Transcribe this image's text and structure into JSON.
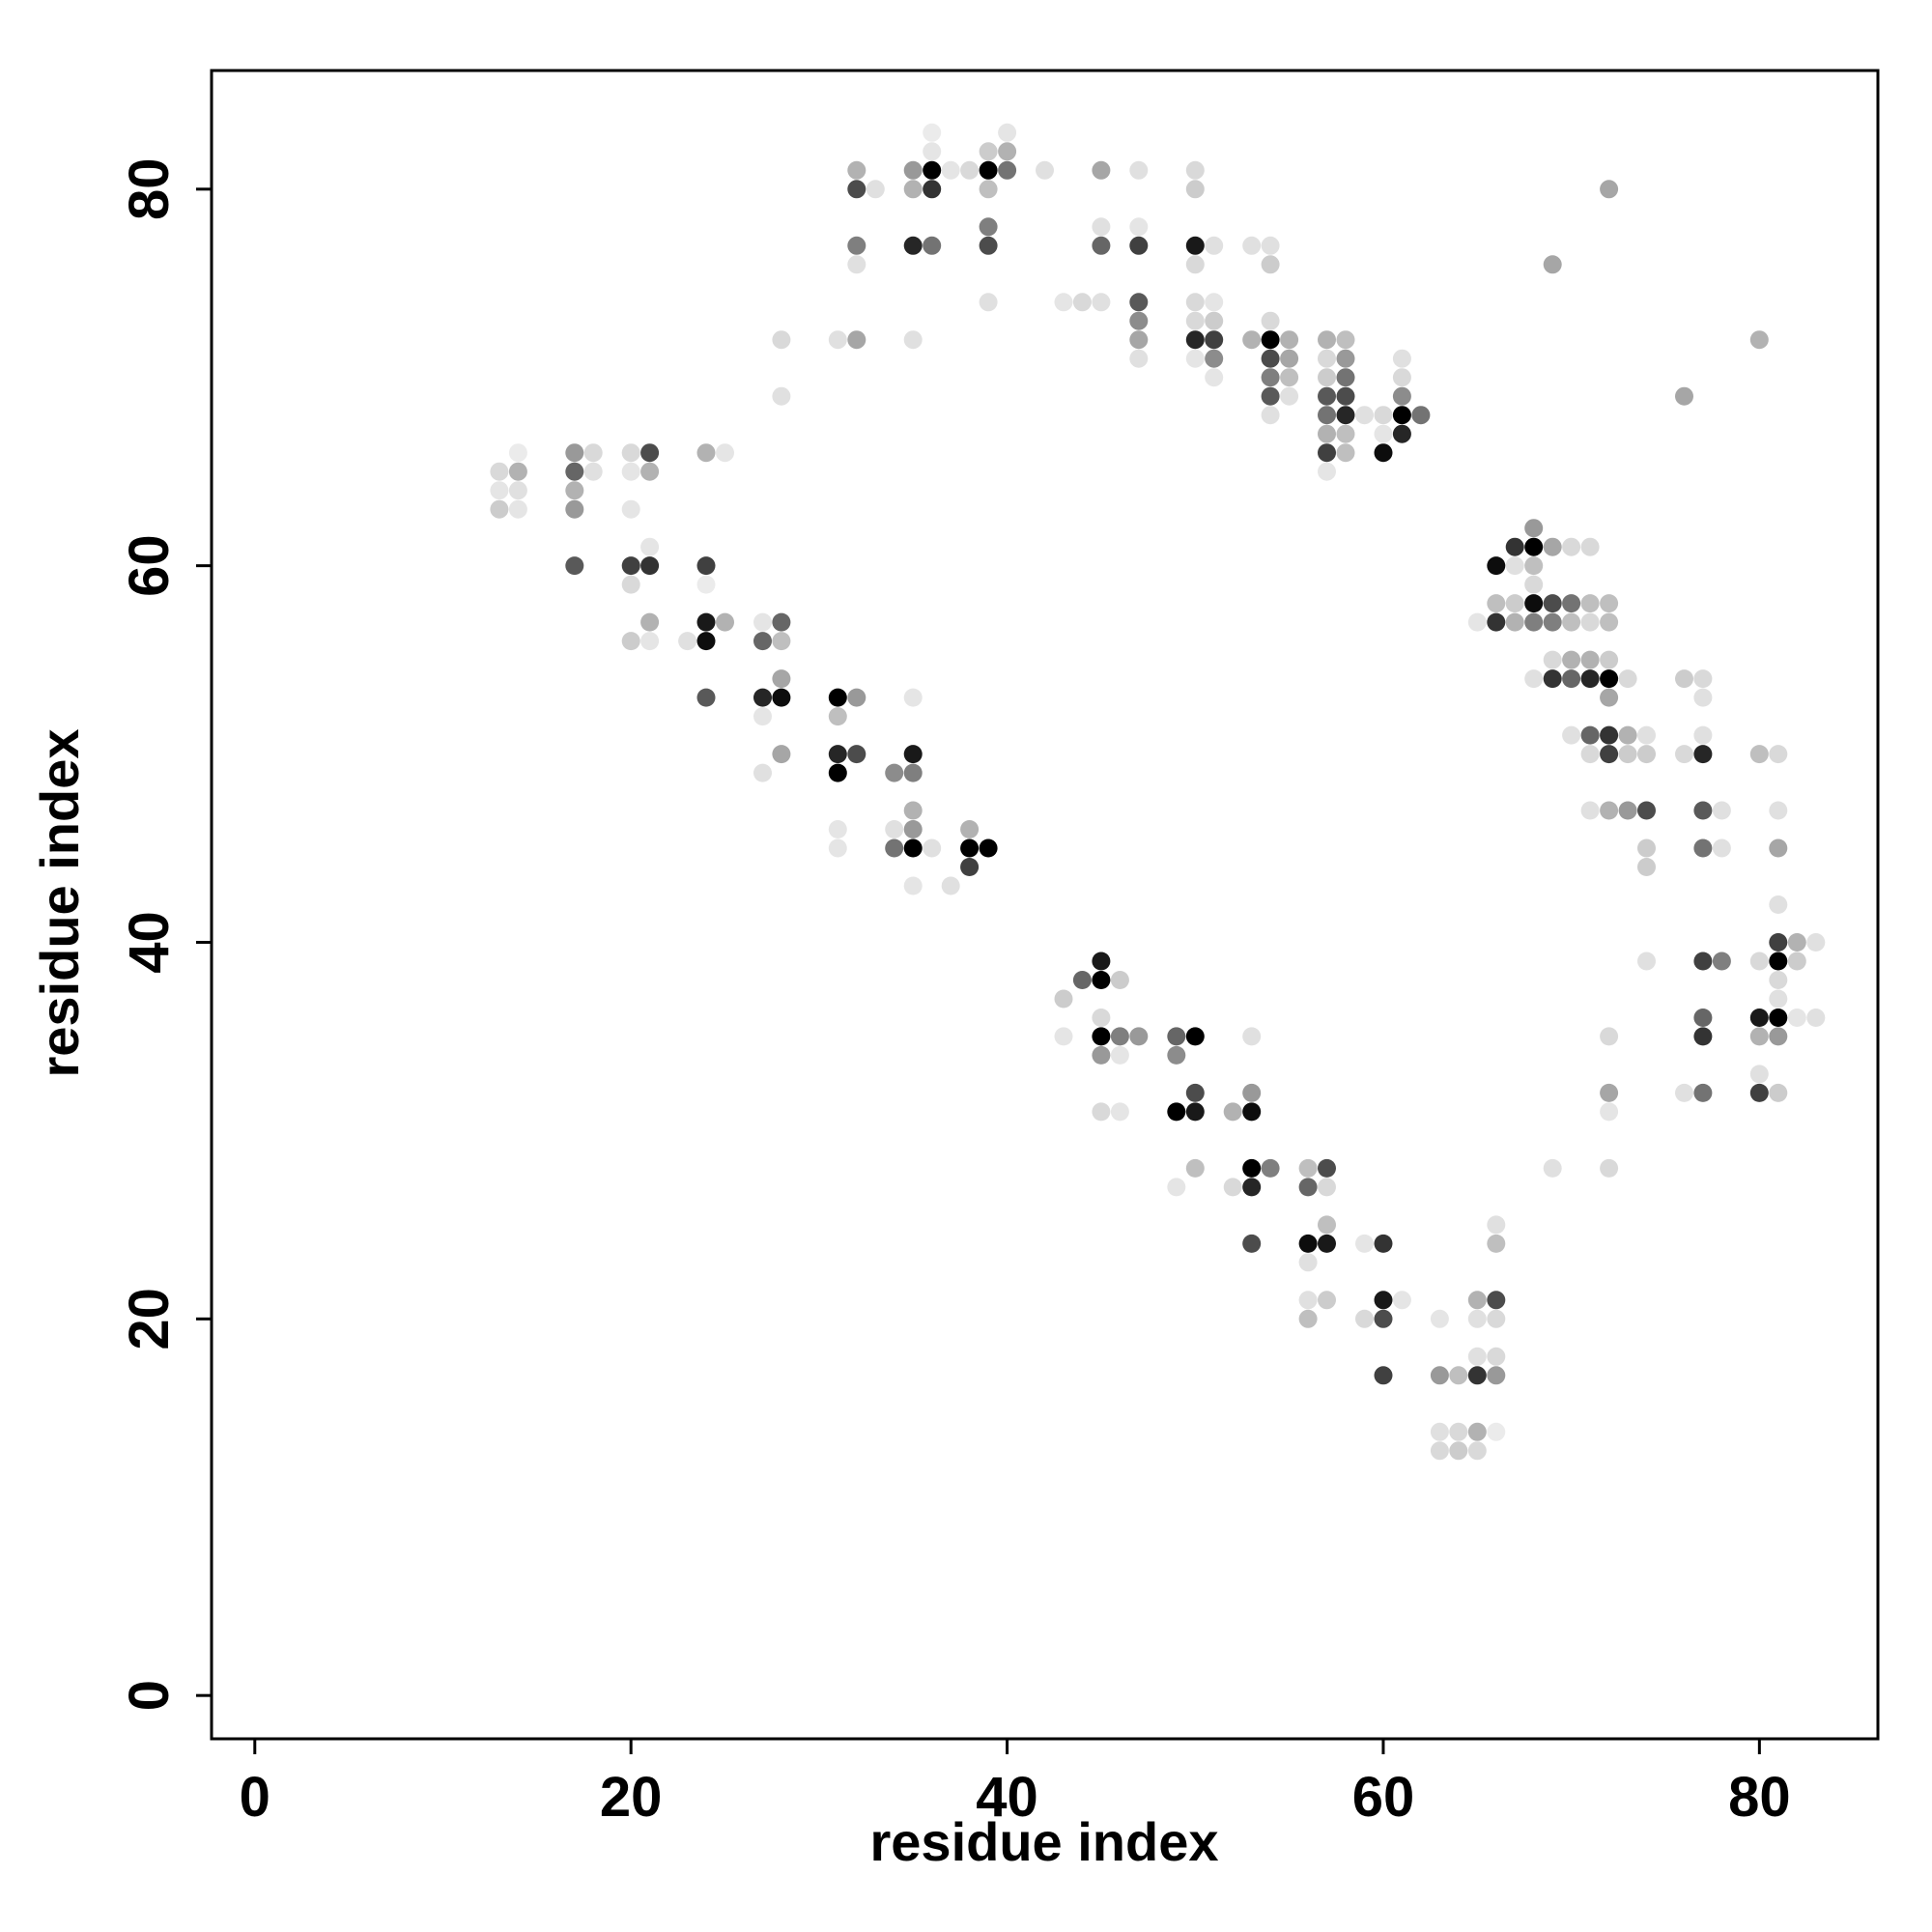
{
  "chart_data": {
    "type": "scatter",
    "title": "",
    "xlabel": "residue index",
    "ylabel": "residue index",
    "xlim": [
      -2.3,
      86.3
    ],
    "ylim": [
      -2.3,
      86.3
    ],
    "xticks": [
      0,
      20,
      40,
      60,
      80
    ],
    "yticks": [
      0,
      20,
      40,
      60,
      80
    ],
    "grid": false,
    "legend": "none",
    "point_color": "#000000",
    "note_shade": "each point: [x, y, opacity 0-1]",
    "points": [
      [
        13,
        65,
        0.15
      ],
      [
        13,
        64,
        0.1
      ],
      [
        13,
        63,
        0.2
      ],
      [
        14,
        66,
        0.08
      ],
      [
        14,
        65,
        0.3
      ],
      [
        14,
        64,
        0.12
      ],
      [
        14,
        63,
        0.1
      ],
      [
        17,
        66,
        0.4
      ],
      [
        17,
        65,
        0.6
      ],
      [
        17,
        64,
        0.3
      ],
      [
        17,
        63,
        0.4
      ],
      [
        17,
        60,
        0.65
      ],
      [
        18,
        66,
        0.15
      ],
      [
        18,
        65,
        0.12
      ],
      [
        20,
        66,
        0.15
      ],
      [
        20,
        65,
        0.1
      ],
      [
        20,
        63,
        0.1
      ],
      [
        20,
        60,
        0.75
      ],
      [
        20,
        59,
        0.15
      ],
      [
        20,
        56,
        0.2
      ],
      [
        21,
        66,
        0.7
      ],
      [
        21,
        65,
        0.3
      ],
      [
        21,
        61,
        0.1
      ],
      [
        21,
        60,
        0.8
      ],
      [
        21,
        57,
        0.3
      ],
      [
        21,
        56,
        0.1
      ],
      [
        23,
        56,
        0.12
      ],
      [
        24,
        66,
        0.3
      ],
      [
        24,
        60,
        0.75
      ],
      [
        24,
        59,
        0.08
      ],
      [
        24,
        57,
        0.9
      ],
      [
        24,
        56,
        0.95
      ],
      [
        24,
        53,
        0.65
      ],
      [
        25,
        66,
        0.1
      ],
      [
        25,
        57,
        0.3
      ],
      [
        27,
        57,
        0.1
      ],
      [
        27,
        56,
        0.6
      ],
      [
        27,
        52,
        0.1
      ],
      [
        27,
        53,
        0.85
      ],
      [
        27,
        49,
        0.12
      ],
      [
        28,
        57,
        0.6
      ],
      [
        28,
        56,
        0.25
      ],
      [
        28,
        54,
        0.35
      ],
      [
        28,
        53,
        0.95
      ],
      [
        28,
        50,
        0.35
      ],
      [
        28,
        72,
        0.15
      ],
      [
        28,
        69,
        0.12
      ],
      [
        31,
        72,
        0.12
      ],
      [
        31,
        53,
        1.0
      ],
      [
        31,
        52,
        0.25
      ],
      [
        31,
        50,
        0.85
      ],
      [
        31,
        49,
        1.0
      ],
      [
        31,
        46,
        0.1
      ],
      [
        31,
        45,
        0.1
      ],
      [
        32,
        81,
        0.3
      ],
      [
        32,
        80,
        0.7
      ],
      [
        32,
        77,
        0.5
      ],
      [
        32,
        76,
        0.12
      ],
      [
        32,
        72,
        0.35
      ],
      [
        32,
        53,
        0.4
      ],
      [
        32,
        50,
        0.7
      ],
      [
        33,
        80,
        0.12
      ],
      [
        34,
        49,
        0.45
      ],
      [
        34,
        46,
        0.12
      ],
      [
        34,
        45,
        0.55
      ],
      [
        35,
        81,
        0.4
      ],
      [
        35,
        80,
        0.3
      ],
      [
        35,
        77,
        0.85
      ],
      [
        35,
        72,
        0.12
      ],
      [
        35,
        53,
        0.1
      ],
      [
        35,
        50,
        0.9
      ],
      [
        35,
        49,
        0.5
      ],
      [
        35,
        47,
        0.3
      ],
      [
        35,
        46,
        0.4
      ],
      [
        35,
        45,
        1.0
      ],
      [
        35,
        43,
        0.1
      ],
      [
        36,
        83,
        0.08
      ],
      [
        36,
        82,
        0.1
      ],
      [
        36,
        81,
        1.0
      ],
      [
        36,
        80,
        0.8
      ],
      [
        36,
        77,
        0.55
      ],
      [
        36,
        45,
        0.12
      ],
      [
        37,
        81,
        0.1
      ],
      [
        37,
        43,
        0.12
      ],
      [
        38,
        81,
        0.15
      ],
      [
        38,
        46,
        0.3
      ],
      [
        38,
        45,
        1.0
      ],
      [
        38,
        44,
        0.75
      ],
      [
        39,
        82,
        0.2
      ],
      [
        39,
        81,
        1.0
      ],
      [
        39,
        80,
        0.25
      ],
      [
        39,
        78,
        0.5
      ],
      [
        39,
        77,
        0.7
      ],
      [
        39,
        74,
        0.12
      ],
      [
        39,
        45,
        1.0
      ],
      [
        40,
        83,
        0.1
      ],
      [
        40,
        82,
        0.3
      ],
      [
        40,
        81,
        0.55
      ],
      [
        42,
        81,
        0.12
      ],
      [
        43,
        74,
        0.1
      ],
      [
        43,
        37,
        0.2
      ],
      [
        43,
        35,
        0.1
      ],
      [
        44,
        74,
        0.15
      ],
      [
        44,
        38,
        0.6
      ],
      [
        45,
        81,
        0.35
      ],
      [
        45,
        78,
        0.12
      ],
      [
        45,
        77,
        0.6
      ],
      [
        45,
        74,
        0.12
      ],
      [
        45,
        39,
        0.9
      ],
      [
        45,
        38,
        1.0
      ],
      [
        45,
        36,
        0.15
      ],
      [
        45,
        35,
        1.0
      ],
      [
        45,
        34,
        0.4
      ],
      [
        45,
        31,
        0.15
      ],
      [
        46,
        38,
        0.2
      ],
      [
        46,
        35,
        0.5
      ],
      [
        46,
        34,
        0.1
      ],
      [
        46,
        31,
        0.1
      ],
      [
        47,
        81,
        0.12
      ],
      [
        47,
        78,
        0.1
      ],
      [
        47,
        77,
        0.75
      ],
      [
        47,
        74,
        0.65
      ],
      [
        47,
        73,
        0.45
      ],
      [
        47,
        72,
        0.35
      ],
      [
        47,
        71,
        0.12
      ],
      [
        47,
        35,
        0.4
      ],
      [
        49,
        35,
        0.6
      ],
      [
        49,
        34,
        0.45
      ],
      [
        49,
        31,
        1.0
      ],
      [
        49,
        27,
        0.1
      ],
      [
        50,
        81,
        0.15
      ],
      [
        50,
        80,
        0.2
      ],
      [
        50,
        77,
        0.9
      ],
      [
        50,
        76,
        0.15
      ],
      [
        50,
        74,
        0.15
      ],
      [
        50,
        73,
        0.15
      ],
      [
        50,
        72,
        0.85
      ],
      [
        50,
        71,
        0.1
      ],
      [
        50,
        35,
        1.0
      ],
      [
        50,
        32,
        0.7
      ],
      [
        50,
        31,
        0.9
      ],
      [
        50,
        28,
        0.25
      ],
      [
        51,
        77,
        0.12
      ],
      [
        51,
        74,
        0.1
      ],
      [
        51,
        73,
        0.2
      ],
      [
        51,
        72,
        0.75
      ],
      [
        51,
        71,
        0.45
      ],
      [
        51,
        70,
        0.1
      ],
      [
        52,
        31,
        0.3
      ],
      [
        52,
        27,
        0.15
      ],
      [
        53,
        77,
        0.12
      ],
      [
        53,
        72,
        0.3
      ],
      [
        53,
        35,
        0.12
      ],
      [
        53,
        32,
        0.4
      ],
      [
        53,
        31,
        0.95
      ],
      [
        53,
        28,
        1.0
      ],
      [
        53,
        27,
        0.85
      ],
      [
        53,
        24,
        0.7
      ],
      [
        54,
        77,
        0.12
      ],
      [
        54,
        76,
        0.2
      ],
      [
        54,
        73,
        0.15
      ],
      [
        54,
        72,
        1.0
      ],
      [
        54,
        71,
        0.7
      ],
      [
        54,
        70,
        0.5
      ],
      [
        54,
        69,
        0.65
      ],
      [
        54,
        68,
        0.12
      ],
      [
        54,
        28,
        0.5
      ],
      [
        55,
        72,
        0.3
      ],
      [
        55,
        71,
        0.35
      ],
      [
        55,
        70,
        0.25
      ],
      [
        55,
        69,
        0.12
      ],
      [
        56,
        28,
        0.25
      ],
      [
        56,
        27,
        0.6
      ],
      [
        56,
        24,
        0.95
      ],
      [
        56,
        23,
        0.12
      ],
      [
        56,
        21,
        0.12
      ],
      [
        56,
        20,
        0.25
      ],
      [
        57,
        72,
        0.3
      ],
      [
        57,
        71,
        0.15
      ],
      [
        57,
        70,
        0.2
      ],
      [
        57,
        69,
        0.65
      ],
      [
        57,
        68,
        0.55
      ],
      [
        57,
        67,
        0.3
      ],
      [
        57,
        66,
        0.75
      ],
      [
        57,
        65,
        0.1
      ],
      [
        57,
        28,
        0.7
      ],
      [
        57,
        27,
        0.15
      ],
      [
        57,
        25,
        0.25
      ],
      [
        57,
        24,
        0.9
      ],
      [
        57,
        21,
        0.2
      ],
      [
        58,
        72,
        0.25
      ],
      [
        58,
        71,
        0.4
      ],
      [
        58,
        70,
        0.55
      ],
      [
        58,
        69,
        0.7
      ],
      [
        58,
        68,
        0.85
      ],
      [
        58,
        67,
        0.25
      ],
      [
        58,
        66,
        0.25
      ],
      [
        59,
        68,
        0.12
      ],
      [
        59,
        24,
        0.1
      ],
      [
        59,
        20,
        0.15
      ],
      [
        60,
        68,
        0.15
      ],
      [
        60,
        67,
        0.1
      ],
      [
        60,
        66,
        0.95
      ],
      [
        60,
        24,
        0.8
      ],
      [
        60,
        21,
        0.9
      ],
      [
        60,
        20,
        0.7
      ],
      [
        60,
        17,
        0.75
      ],
      [
        61,
        71,
        0.12
      ],
      [
        61,
        70,
        0.15
      ],
      [
        61,
        69,
        0.45
      ],
      [
        61,
        68,
        1.0
      ],
      [
        61,
        67,
        0.85
      ],
      [
        61,
        21,
        0.1
      ],
      [
        62,
        68,
        0.55
      ],
      [
        63,
        20,
        0.1
      ],
      [
        63,
        17,
        0.4
      ],
      [
        63,
        14,
        0.12
      ],
      [
        63,
        13,
        0.15
      ],
      [
        64,
        17,
        0.25
      ],
      [
        64,
        14,
        0.15
      ],
      [
        64,
        13,
        0.2
      ],
      [
        65,
        21,
        0.3
      ],
      [
        65,
        20,
        0.12
      ],
      [
        65,
        18,
        0.12
      ],
      [
        65,
        17,
        0.8
      ],
      [
        65,
        14,
        0.3
      ],
      [
        65,
        13,
        0.15
      ],
      [
        66,
        25,
        0.12
      ],
      [
        66,
        24,
        0.25
      ],
      [
        66,
        21,
        0.7
      ],
      [
        66,
        20,
        0.15
      ],
      [
        66,
        18,
        0.15
      ],
      [
        66,
        17,
        0.4
      ],
      [
        66,
        14,
        0.08
      ],
      [
        65,
        57,
        0.1
      ],
      [
        66,
        60,
        0.95
      ],
      [
        66,
        58,
        0.25
      ],
      [
        66,
        57,
        0.8
      ],
      [
        67,
        61,
        0.8
      ],
      [
        67,
        60,
        0.12
      ],
      [
        67,
        58,
        0.2
      ],
      [
        67,
        57,
        0.3
      ],
      [
        68,
        62,
        0.4
      ],
      [
        68,
        61,
        1.0
      ],
      [
        68,
        60,
        0.25
      ],
      [
        68,
        59,
        0.15
      ],
      [
        68,
        58,
        0.95
      ],
      [
        68,
        57,
        0.5
      ],
      [
        68,
        54,
        0.12
      ],
      [
        69,
        61,
        0.35
      ],
      [
        69,
        58,
        0.7
      ],
      [
        69,
        57,
        0.5
      ],
      [
        69,
        55,
        0.15
      ],
      [
        69,
        54,
        0.8
      ],
      [
        69,
        76,
        0.35
      ],
      [
        69,
        28,
        0.12
      ],
      [
        70,
        61,
        0.15
      ],
      [
        70,
        58,
        0.55
      ],
      [
        70,
        57,
        0.25
      ],
      [
        70,
        55,
        0.3
      ],
      [
        70,
        54,
        0.6
      ],
      [
        70,
        51,
        0.12
      ],
      [
        71,
        61,
        0.15
      ],
      [
        71,
        58,
        0.25
      ],
      [
        71,
        57,
        0.15
      ],
      [
        71,
        55,
        0.3
      ],
      [
        71,
        54,
        0.85
      ],
      [
        71,
        51,
        0.6
      ],
      [
        71,
        50,
        0.15
      ],
      [
        71,
        47,
        0.12
      ],
      [
        72,
        80,
        0.35
      ],
      [
        72,
        58,
        0.25
      ],
      [
        72,
        57,
        0.25
      ],
      [
        72,
        55,
        0.2
      ],
      [
        72,
        54,
        1.0
      ],
      [
        72,
        53,
        0.35
      ],
      [
        72,
        51,
        0.8
      ],
      [
        72,
        50,
        0.75
      ],
      [
        72,
        47,
        0.3
      ],
      [
        72,
        35,
        0.15
      ],
      [
        72,
        32,
        0.35
      ],
      [
        72,
        31,
        0.1
      ],
      [
        72,
        28,
        0.15
      ],
      [
        73,
        54,
        0.15
      ],
      [
        73,
        51,
        0.3
      ],
      [
        73,
        50,
        0.2
      ],
      [
        73,
        47,
        0.4
      ],
      [
        74,
        51,
        0.12
      ],
      [
        74,
        50,
        0.2
      ],
      [
        74,
        47,
        0.7
      ],
      [
        74,
        45,
        0.2
      ],
      [
        74,
        44,
        0.2
      ],
      [
        74,
        39,
        0.12
      ],
      [
        76,
        69,
        0.35
      ],
      [
        76,
        54,
        0.2
      ],
      [
        76,
        50,
        0.15
      ],
      [
        76,
        32,
        0.12
      ],
      [
        77,
        54,
        0.15
      ],
      [
        77,
        53,
        0.12
      ],
      [
        77,
        51,
        0.12
      ],
      [
        77,
        50,
        0.85
      ],
      [
        77,
        47,
        0.65
      ],
      [
        77,
        45,
        0.55
      ],
      [
        77,
        39,
        0.75
      ],
      [
        77,
        36,
        0.6
      ],
      [
        77,
        35,
        0.8
      ],
      [
        77,
        32,
        0.55
      ],
      [
        78,
        47,
        0.12
      ],
      [
        78,
        45,
        0.12
      ],
      [
        78,
        39,
        0.5
      ],
      [
        80,
        72,
        0.3
      ],
      [
        80,
        50,
        0.25
      ],
      [
        80,
        39,
        0.15
      ],
      [
        80,
        36,
        0.9
      ],
      [
        80,
        35,
        0.3
      ],
      [
        80,
        33,
        0.12
      ],
      [
        80,
        32,
        0.75
      ],
      [
        81,
        50,
        0.15
      ],
      [
        81,
        47,
        0.12
      ],
      [
        81,
        45,
        0.35
      ],
      [
        81,
        42,
        0.12
      ],
      [
        81,
        40,
        0.75
      ],
      [
        81,
        39,
        1.0
      ],
      [
        81,
        38,
        0.15
      ],
      [
        81,
        37,
        0.12
      ],
      [
        81,
        36,
        1.0
      ],
      [
        81,
        35,
        0.4
      ],
      [
        81,
        32,
        0.2
      ],
      [
        82,
        40,
        0.3
      ],
      [
        82,
        39,
        0.2
      ],
      [
        82,
        36,
        0.1
      ],
      [
        83,
        40,
        0.12
      ],
      [
        83,
        36,
        0.12
      ]
    ]
  }
}
